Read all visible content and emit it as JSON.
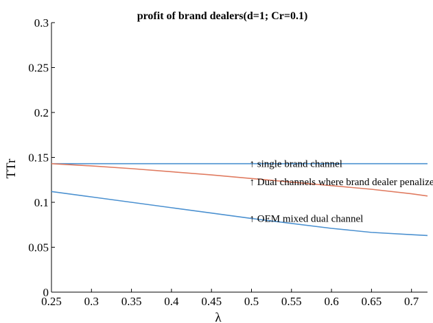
{
  "chart_data": {
    "type": "line",
    "title": "profit of brand dealers(d=1; Cr=0.1)",
    "xlabel": "λ",
    "ylabel": "TTr",
    "xlim": [
      0.25,
      0.72
    ],
    "ylim": [
      0,
      0.3
    ],
    "xticks": [
      0.25,
      0.3,
      0.35,
      0.4,
      0.45,
      0.5,
      0.55,
      0.6,
      0.65,
      0.7
    ],
    "xtick_labels": [
      "0.25",
      "0.3",
      "0.35",
      "0.4",
      "0.45",
      "0.5",
      "0.55",
      "0.6",
      "0.65",
      "0.7"
    ],
    "yticks": [
      0,
      0.05,
      0.1,
      0.15,
      0.2,
      0.25,
      0.3
    ],
    "ytick_labels": [
      "0",
      "0.05",
      "0.1",
      "0.15",
      "0.2",
      "0.25",
      "0.3"
    ],
    "grid": false,
    "series": [
      {
        "color": "#4a90d0",
        "x": [
          0.25,
          0.3,
          0.35,
          0.4,
          0.45,
          0.5,
          0.55,
          0.6,
          0.65,
          0.7,
          0.72
        ],
        "y": [
          0.143,
          0.143,
          0.143,
          0.143,
          0.143,
          0.143,
          0.143,
          0.143,
          0.143,
          0.143,
          0.143
        ]
      },
      {
        "color": "#e07a5f",
        "x": [
          0.25,
          0.3,
          0.35,
          0.4,
          0.45,
          0.5,
          0.55,
          0.6,
          0.65,
          0.7,
          0.72
        ],
        "y": [
          0.143,
          0.1405,
          0.1375,
          0.134,
          0.1305,
          0.1265,
          0.1225,
          0.1185,
          0.1145,
          0.1095,
          0.107
        ]
      },
      {
        "color": "#4a90d0",
        "x": [
          0.25,
          0.3,
          0.35,
          0.4,
          0.45,
          0.5,
          0.55,
          0.6,
          0.65,
          0.7,
          0.72
        ],
        "y": [
          0.112,
          0.106,
          0.1,
          0.094,
          0.088,
          0.082,
          0.0765,
          0.071,
          0.0665,
          0.064,
          0.063
        ]
      }
    ],
    "annotations": [
      {
        "text": "↑ single brand channel",
        "x": 0.5,
        "y": 0.143
      },
      {
        "text": "↑ Dual channels where brand dealer penalize",
        "x": 0.5,
        "y": 0.123
      },
      {
        "text": "↑ OEM mixed dual channel",
        "x": 0.5,
        "y": 0.082
      }
    ]
  }
}
